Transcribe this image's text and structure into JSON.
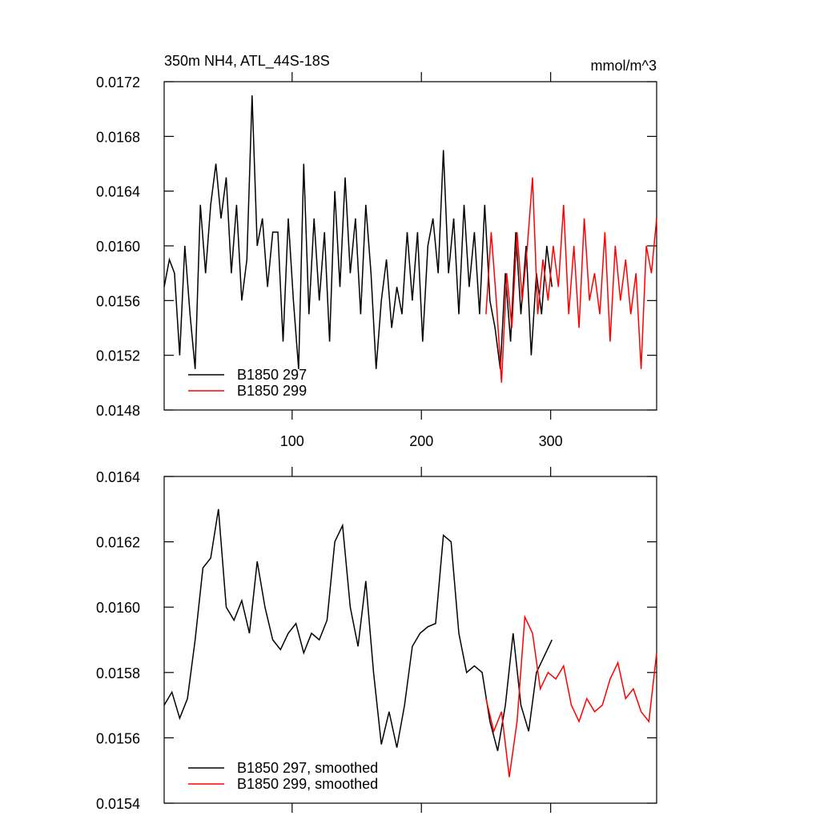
{
  "chart_data": [
    {
      "type": "line",
      "title": "350m NH4, ATL_44S-18S",
      "units": "mmol/m^3",
      "xlim": [
        1,
        382
      ],
      "xticks": [
        100,
        200,
        300
      ],
      "show_xtick_labels": true,
      "ylim": [
        0.0148,
        0.0172
      ],
      "yticks": [
        0.0148,
        0.0152,
        0.0156,
        {
          "value": 0.016,
          "label": "0.0160"
        },
        0.0164,
        0.0168,
        0.0172
      ],
      "legend": "lower left",
      "series": [
        {
          "name": "B1850 297",
          "color": "#000000",
          "x": [
            1,
            5,
            9,
            13,
            17,
            21,
            25,
            29,
            33,
            37,
            41,
            45,
            49,
            53,
            57,
            61,
            65,
            69,
            73,
            77,
            81,
            85,
            89,
            93,
            97,
            101,
            105,
            109,
            113,
            117,
            121,
            125,
            129,
            133,
            137,
            141,
            145,
            149,
            153,
            157,
            161,
            165,
            169,
            173,
            177,
            181,
            185,
            189,
            193,
            197,
            201,
            205,
            209,
            213,
            217,
            221,
            225,
            229,
            233,
            237,
            241,
            245,
            249,
            253,
            257,
            261,
            265,
            269,
            273,
            277,
            281,
            285,
            289,
            293,
            297,
            301
          ],
          "values": [
            0.0157,
            0.0159,
            0.0158,
            0.0152,
            0.016,
            0.0155,
            0.0151,
            0.0163,
            0.0158,
            0.0163,
            0.0166,
            0.0162,
            0.0165,
            0.0158,
            0.0163,
            0.0156,
            0.0159,
            0.0171,
            0.016,
            0.0162,
            0.0157,
            0.0161,
            0.0161,
            0.0153,
            0.0162,
            0.0156,
            0.0151,
            0.0166,
            0.0155,
            0.0162,
            0.0156,
            0.0161,
            0.0153,
            0.0164,
            0.0157,
            0.0165,
            0.0158,
            0.0162,
            0.0155,
            0.0163,
            0.0158,
            0.0151,
            0.0156,
            0.0159,
            0.0154,
            0.0157,
            0.0155,
            0.0161,
            0.0156,
            0.0161,
            0.0153,
            0.016,
            0.0162,
            0.0158,
            0.0167,
            0.0158,
            0.0162,
            0.0155,
            0.0163,
            0.0157,
            0.0161,
            0.0155,
            0.0163,
            0.0156,
            0.0154,
            0.0151,
            0.0158,
            0.0153,
            0.0161,
            0.0155,
            0.016,
            0.0152,
            0.0158,
            0.0155,
            0.016,
            0.0157
          ]
        },
        {
          "name": "B1850 299",
          "color": "#ff0000",
          "x": [
            250,
            254,
            258,
            262,
            266,
            270,
            274,
            278,
            282,
            286,
            290,
            294,
            298,
            302,
            306,
            310,
            314,
            318,
            322,
            326,
            330,
            334,
            338,
            342,
            346,
            350,
            354,
            358,
            362,
            366,
            370,
            374,
            378,
            382
          ],
          "values": [
            0.0155,
            0.0161,
            0.0156,
            0.015,
            0.0158,
            0.0154,
            0.0161,
            0.0156,
            0.016,
            0.0165,
            0.0155,
            0.0159,
            0.0156,
            0.016,
            0.0157,
            0.0163,
            0.0155,
            0.016,
            0.0154,
            0.0162,
            0.0156,
            0.0158,
            0.0155,
            0.0161,
            0.0153,
            0.016,
            0.0156,
            0.0159,
            0.0155,
            0.0158,
            0.0151,
            0.016,
            0.0158,
            0.0162
          ]
        }
      ]
    },
    {
      "type": "line",
      "xlim": [
        1,
        382
      ],
      "xticks": [
        100,
        200,
        300
      ],
      "show_xtick_labels": false,
      "ylim": [
        0.0154,
        0.0164
      ],
      "yticks": [
        0.0154,
        0.0156,
        0.0158,
        {
          "value": 0.016,
          "label": "0.0160"
        },
        0.0162,
        0.0164
      ],
      "legend": "lower left",
      "series": [
        {
          "name": "B1850 297, smoothed",
          "color": "#000000",
          "x": [
            1,
            7,
            13,
            19,
            25,
            31,
            37,
            43,
            49,
            55,
            61,
            67,
            73,
            79,
            85,
            91,
            97,
            103,
            109,
            115,
            121,
            127,
            133,
            139,
            145,
            151,
            157,
            163,
            169,
            175,
            181,
            187,
            193,
            199,
            205,
            211,
            217,
            223,
            229,
            235,
            241,
            247,
            253,
            259,
            265,
            271,
            277,
            283,
            289,
            295,
            301
          ],
          "values": [
            0.0157,
            0.01574,
            0.01566,
            0.01572,
            0.0159,
            0.01612,
            0.01615,
            0.0163,
            0.016,
            0.01596,
            0.01602,
            0.01592,
            0.01614,
            0.016,
            0.0159,
            0.01587,
            0.01592,
            0.01595,
            0.01586,
            0.01592,
            0.0159,
            0.01596,
            0.0162,
            0.01625,
            0.016,
            0.01588,
            0.01608,
            0.0158,
            0.01558,
            0.01568,
            0.01557,
            0.0157,
            0.01588,
            0.01592,
            0.01594,
            0.01595,
            0.01622,
            0.0162,
            0.01592,
            0.0158,
            0.01582,
            0.0158,
            0.01565,
            0.01556,
            0.0157,
            0.01592,
            0.0157,
            0.01562,
            0.0158,
            0.01585,
            0.0159
          ]
        },
        {
          "name": "B1850 299, smoothed",
          "color": "#ff0000",
          "x": [
            250,
            256,
            262,
            268,
            274,
            280,
            286,
            292,
            298,
            304,
            310,
            316,
            322,
            328,
            334,
            340,
            346,
            352,
            358,
            364,
            370,
            376,
            382
          ],
          "values": [
            0.01572,
            0.01562,
            0.01568,
            0.01548,
            0.01565,
            0.01597,
            0.01592,
            0.01575,
            0.0158,
            0.01578,
            0.01582,
            0.0157,
            0.01565,
            0.01572,
            0.01568,
            0.0157,
            0.01578,
            0.01583,
            0.01572,
            0.01575,
            0.01568,
            0.01565,
            0.01586
          ]
        }
      ]
    }
  ]
}
